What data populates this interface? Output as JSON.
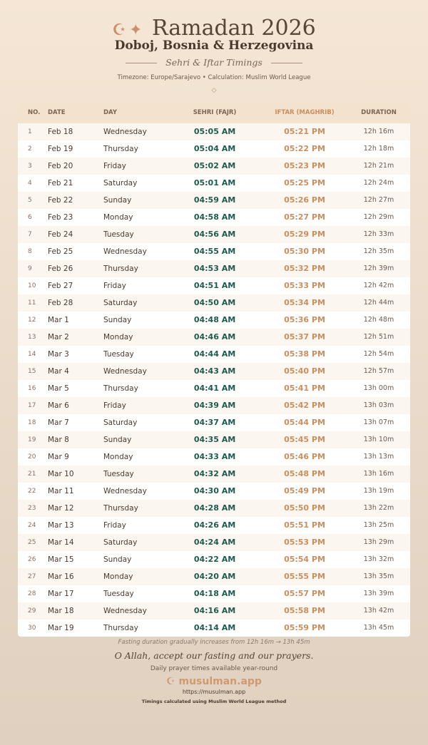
{
  "header": {
    "title": "Ramadan 2026",
    "location": "Doboj, Bosnia & Herzegovina",
    "subtitle": "Sehri & Iftar Timings",
    "meta": "Timezone: Europe/Sarajevo • Calculation: Muslim World League",
    "icons": [
      "crescent-moon-icon",
      "star-icon",
      "diamond-icon"
    ]
  },
  "table": {
    "columns": [
      "NO.",
      "DATE",
      "DAY",
      "SEHRI (FAJR)",
      "IFTAR (MAGHRIB)",
      "DURATION"
    ],
    "rows": [
      [
        "1",
        "Feb 18",
        "Wednesday",
        "05:05 AM",
        "05:21 PM",
        "12h 16m"
      ],
      [
        "2",
        "Feb 19",
        "Thursday",
        "05:04 AM",
        "05:22 PM",
        "12h 18m"
      ],
      [
        "3",
        "Feb 20",
        "Friday",
        "05:02 AM",
        "05:23 PM",
        "12h 21m"
      ],
      [
        "4",
        "Feb 21",
        "Saturday",
        "05:01 AM",
        "05:25 PM",
        "12h 24m"
      ],
      [
        "5",
        "Feb 22",
        "Sunday",
        "04:59 AM",
        "05:26 PM",
        "12h 27m"
      ],
      [
        "6",
        "Feb 23",
        "Monday",
        "04:58 AM",
        "05:27 PM",
        "12h 29m"
      ],
      [
        "7",
        "Feb 24",
        "Tuesday",
        "04:56 AM",
        "05:29 PM",
        "12h 33m"
      ],
      [
        "8",
        "Feb 25",
        "Wednesday",
        "04:55 AM",
        "05:30 PM",
        "12h 35m"
      ],
      [
        "9",
        "Feb 26",
        "Thursday",
        "04:53 AM",
        "05:32 PM",
        "12h 39m"
      ],
      [
        "10",
        "Feb 27",
        "Friday",
        "04:51 AM",
        "05:33 PM",
        "12h 42m"
      ],
      [
        "11",
        "Feb 28",
        "Saturday",
        "04:50 AM",
        "05:34 PM",
        "12h 44m"
      ],
      [
        "12",
        "Mar 1",
        "Sunday",
        "04:48 AM",
        "05:36 PM",
        "12h 48m"
      ],
      [
        "13",
        "Mar 2",
        "Monday",
        "04:46 AM",
        "05:37 PM",
        "12h 51m"
      ],
      [
        "14",
        "Mar 3",
        "Tuesday",
        "04:44 AM",
        "05:38 PM",
        "12h 54m"
      ],
      [
        "15",
        "Mar 4",
        "Wednesday",
        "04:43 AM",
        "05:40 PM",
        "12h 57m"
      ],
      [
        "16",
        "Mar 5",
        "Thursday",
        "04:41 AM",
        "05:41 PM",
        "13h 00m"
      ],
      [
        "17",
        "Mar 6",
        "Friday",
        "04:39 AM",
        "05:42 PM",
        "13h 03m"
      ],
      [
        "18",
        "Mar 7",
        "Saturday",
        "04:37 AM",
        "05:44 PM",
        "13h 07m"
      ],
      [
        "19",
        "Mar 8",
        "Sunday",
        "04:35 AM",
        "05:45 PM",
        "13h 10m"
      ],
      [
        "20",
        "Mar 9",
        "Monday",
        "04:33 AM",
        "05:46 PM",
        "13h 13m"
      ],
      [
        "21",
        "Mar 10",
        "Tuesday",
        "04:32 AM",
        "05:48 PM",
        "13h 16m"
      ],
      [
        "22",
        "Mar 11",
        "Wednesday",
        "04:30 AM",
        "05:49 PM",
        "13h 19m"
      ],
      [
        "23",
        "Mar 12",
        "Thursday",
        "04:28 AM",
        "05:50 PM",
        "13h 22m"
      ],
      [
        "24",
        "Mar 13",
        "Friday",
        "04:26 AM",
        "05:51 PM",
        "13h 25m"
      ],
      [
        "25",
        "Mar 14",
        "Saturday",
        "04:24 AM",
        "05:53 PM",
        "13h 29m"
      ],
      [
        "26",
        "Mar 15",
        "Sunday",
        "04:22 AM",
        "05:54 PM",
        "13h 32m"
      ],
      [
        "27",
        "Mar 16",
        "Monday",
        "04:20 AM",
        "05:55 PM",
        "13h 35m"
      ],
      [
        "28",
        "Mar 17",
        "Tuesday",
        "04:18 AM",
        "05:57 PM",
        "13h 39m"
      ],
      [
        "29",
        "Mar 18",
        "Wednesday",
        "04:16 AM",
        "05:58 PM",
        "13h 42m"
      ],
      [
        "30",
        "Mar 19",
        "Thursday",
        "04:14 AM",
        "05:59 PM",
        "13h 45m"
      ]
    ]
  },
  "colors": {
    "sehri": "#1f5a50",
    "iftar": "#c98f5f"
  },
  "footer": {
    "note": "Fasting duration gradually increases from 12h 16m → 13h 45m",
    "dua": "O Allah, accept our fasting and our prayers.",
    "tagline": "Daily prayer times available year-round",
    "brand": "musulman.app",
    "url": "https://musulman.app",
    "method": "Timings calculated using Muslim World League method"
  }
}
